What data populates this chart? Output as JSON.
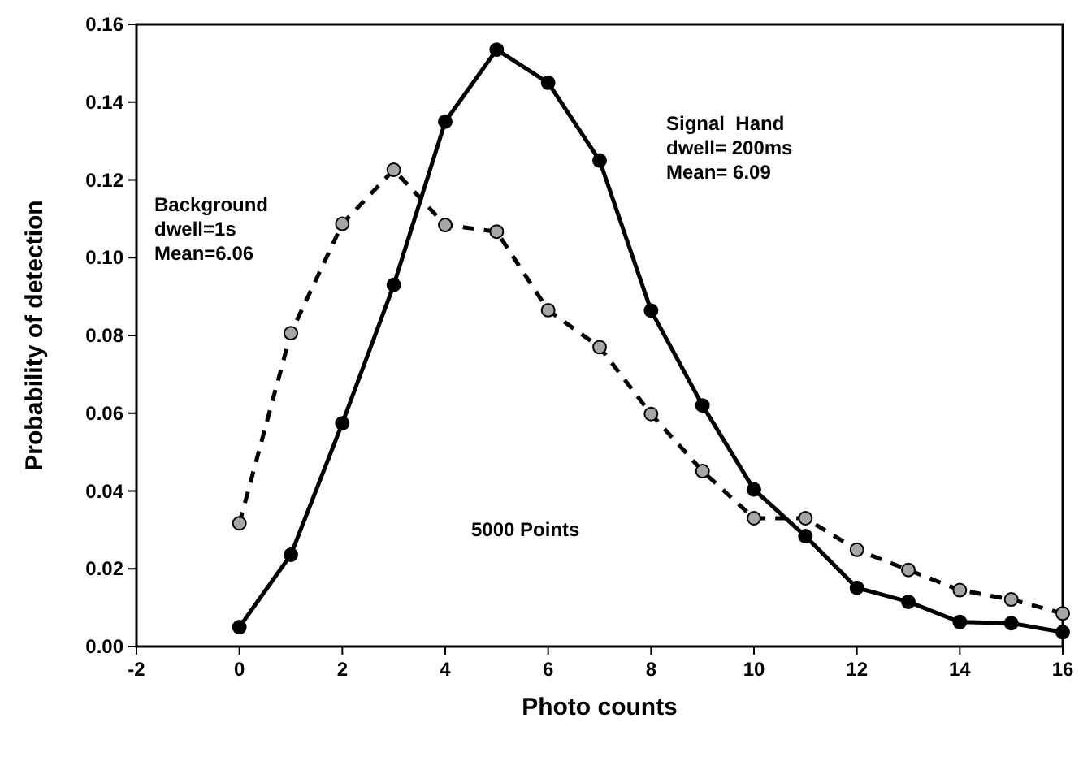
{
  "chart_data": {
    "type": "line",
    "xlabel": "Photo counts",
    "ylabel": "Probability of detection",
    "xlim": [
      -2,
      16
    ],
    "xticks": [
      -2,
      0,
      2,
      4,
      6,
      8,
      10,
      12,
      14,
      16
    ],
    "ylim": [
      0,
      0.16
    ],
    "yticks": [
      {
        "value": 0,
        "label": "0.00"
      },
      {
        "value": 0.02,
        "label": "0.02"
      },
      {
        "value": 0.04,
        "label": "0.04"
      },
      {
        "value": 0.06,
        "label": "0.06"
      },
      {
        "value": 0.08,
        "label": "0.08"
      },
      {
        "value": 0.1,
        "label": "0.10"
      },
      {
        "value": 0.12,
        "label": "0.12"
      },
      {
        "value": 0.14,
        "label": "0.14"
      },
      {
        "value": 0.16,
        "label": "0.16"
      }
    ],
    "x": [
      0,
      1,
      2,
      3,
      4,
      5,
      6,
      7,
      8,
      9,
      10,
      11,
      12,
      13,
      14,
      15,
      16
    ],
    "marker": "circle",
    "grid": false,
    "series": [
      {
        "color": "#000000",
        "line_style": "solid",
        "values": [
          0.005,
          0.0236,
          0.0574,
          0.093,
          0.135,
          0.1535,
          0.145,
          0.125,
          0.0864,
          0.062,
          0.0404,
          0.0284,
          0.0151,
          0.0115,
          0.0063,
          0.006,
          0.0037
        ]
      },
      {
        "color": "#a6a6a6",
        "line_style": "dashed",
        "values": [
          0.0317,
          0.0806,
          0.1087,
          0.1226,
          0.1084,
          0.1067,
          0.0865,
          0.077,
          0.0598,
          0.0451,
          0.033,
          0.033,
          0.0249,
          0.0197,
          0.0145,
          0.0121,
          0.0085
        ]
      }
    ],
    "annotations": [
      "Signal_Hand\ndwell= 200ms\nMean= 6.09",
      "Background\ndwell=1s\nMean=6.06",
      "5000 Points"
    ]
  }
}
